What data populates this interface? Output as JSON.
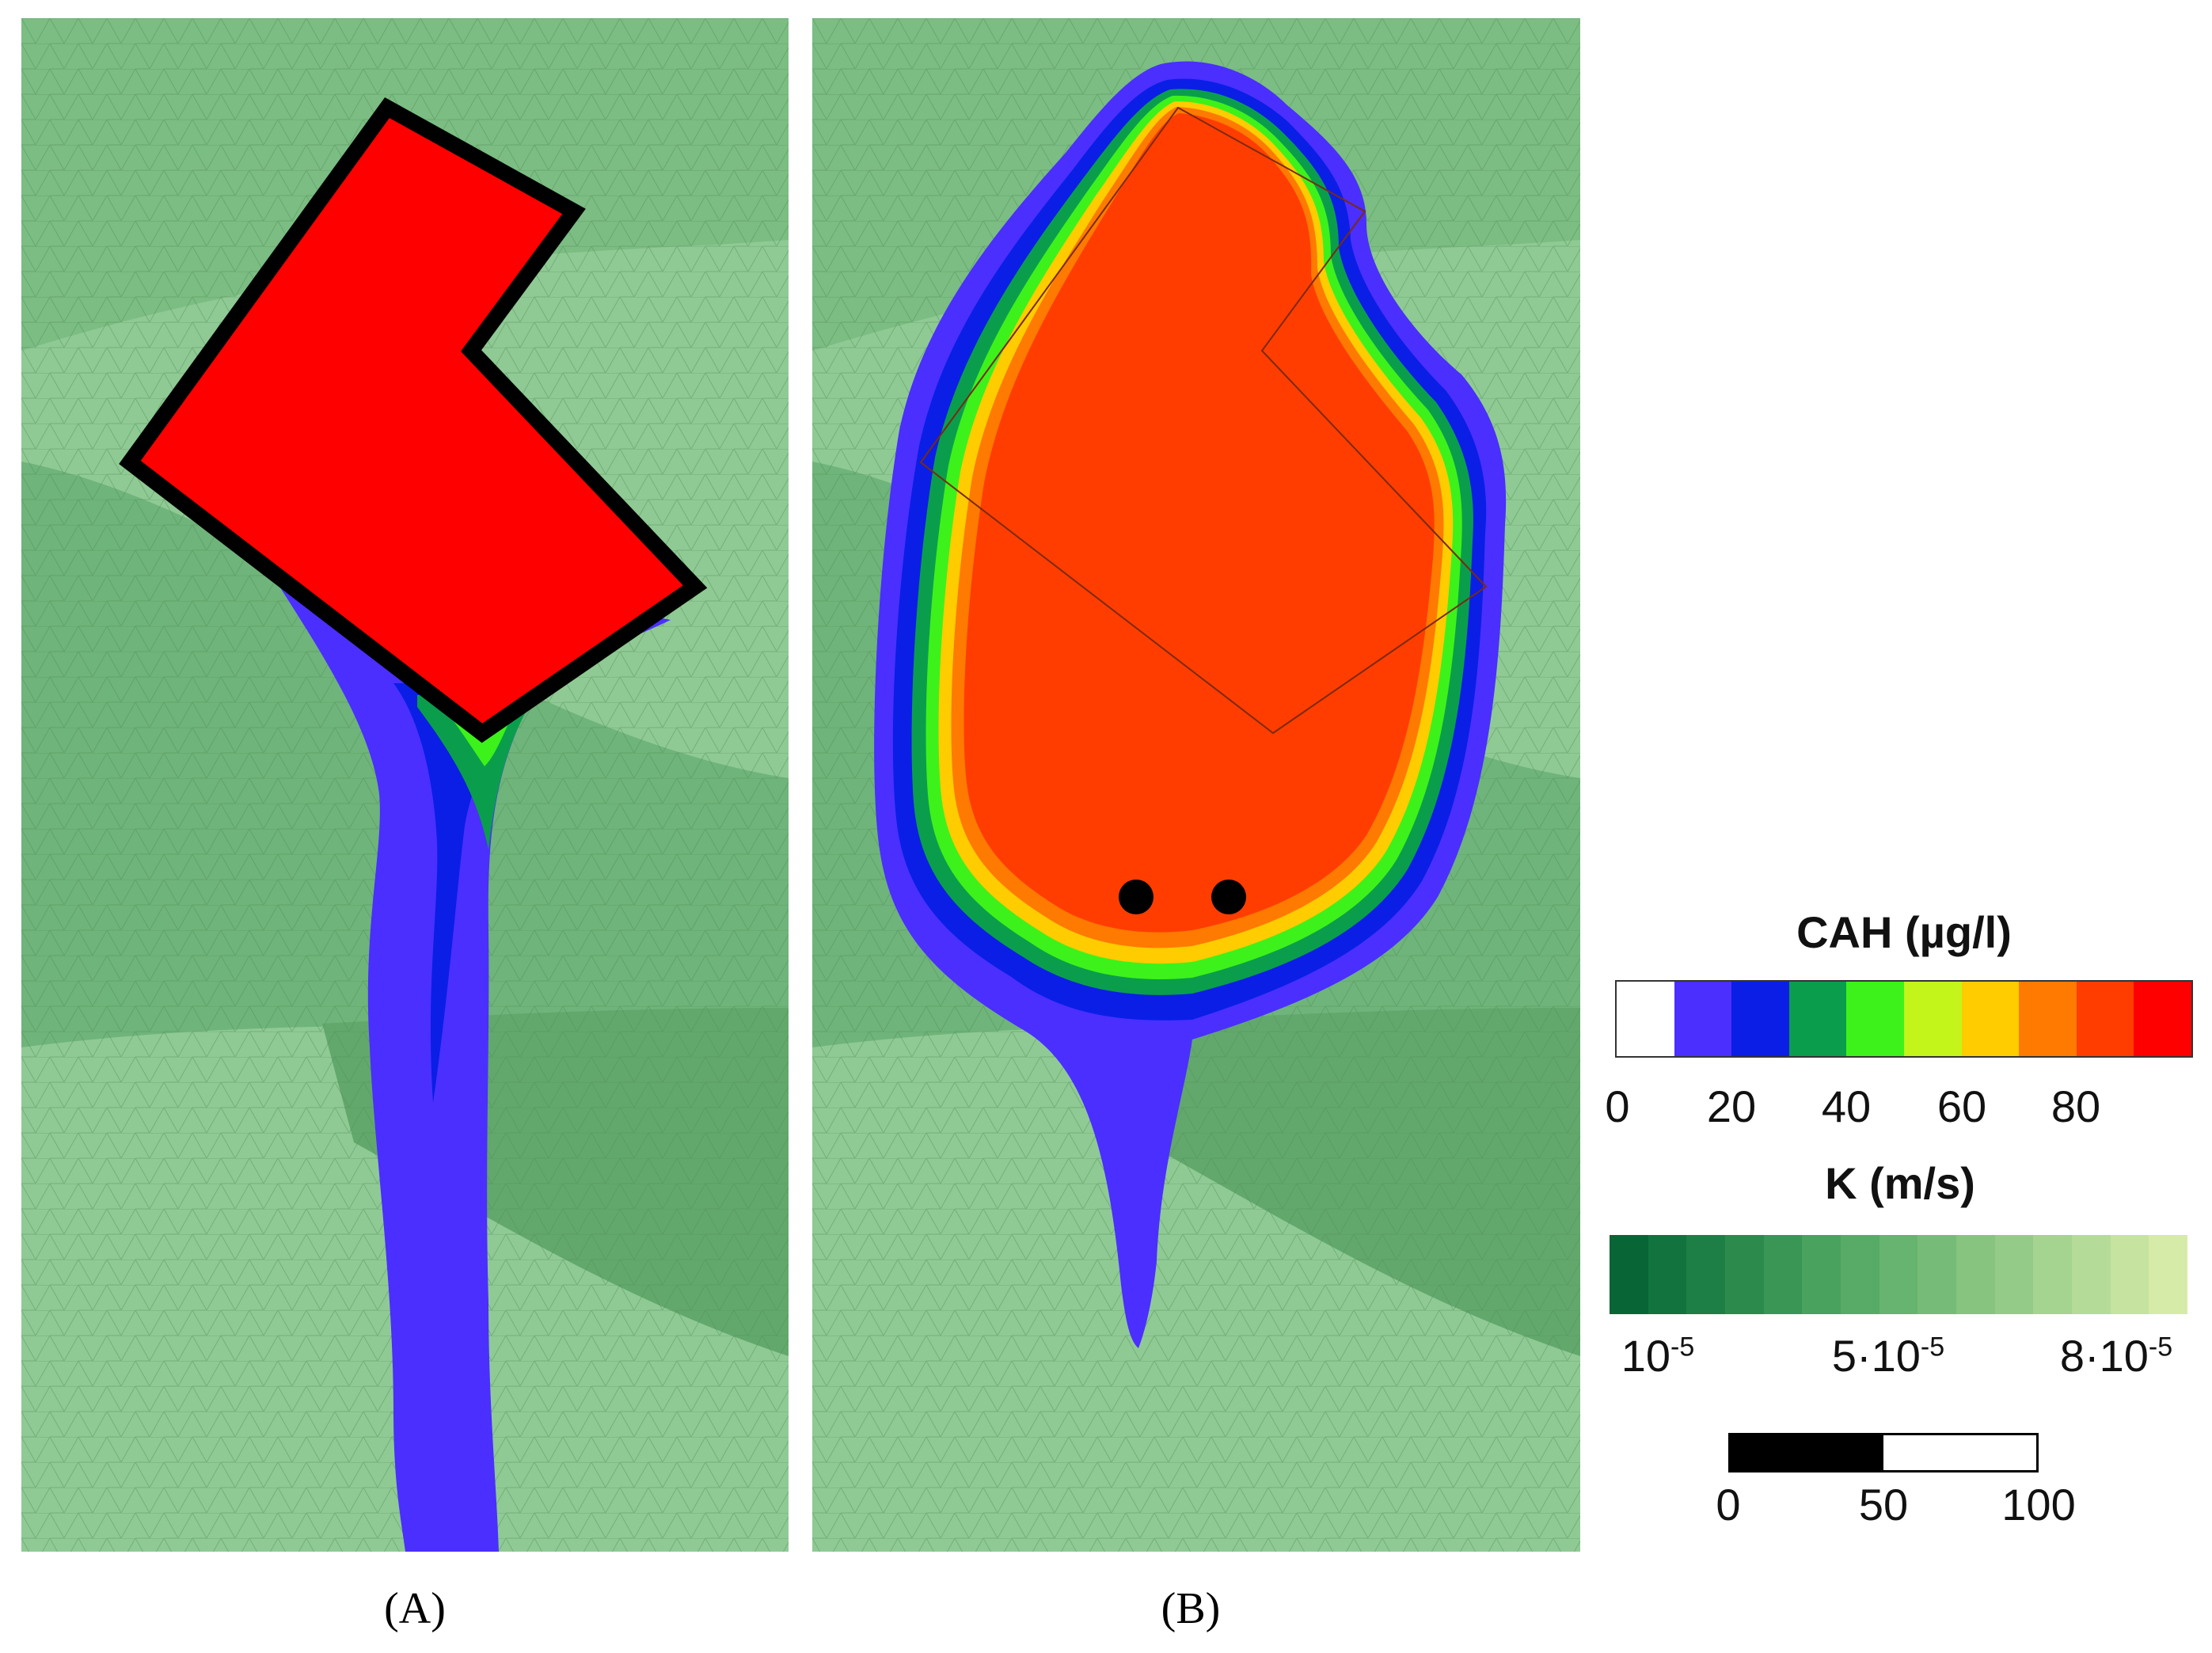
{
  "panels": [
    {
      "label": "(A)"
    },
    {
      "label": "(B)"
    }
  ],
  "colors": {
    "mesh_light": "#8fca94",
    "mesh_mid": "#7bbd83",
    "mesh_dark": "#62a86d",
    "plume_red": "#ff0000",
    "plume_orange_red": "#ff4400",
    "wells": "#000000",
    "outline": "#000000"
  },
  "cah_legend": {
    "title": "CAH (µg/l)",
    "colors": [
      "#ffffff",
      "#4a2fff",
      "#0a1ee6",
      "#0a9e4c",
      "#3df21a",
      "#c3f51a",
      "#ffcc00",
      "#ff7a00",
      "#ff3d00",
      "#ff0000"
    ],
    "ticks": [
      "0",
      "20",
      "40",
      "60",
      "80"
    ]
  },
  "k_legend": {
    "title": "K (m/s)",
    "colors": [
      "#086535",
      "#12733f",
      "#1d7f45",
      "#2b8a4c",
      "#3a9655",
      "#49a25e",
      "#57ab66",
      "#66b46f",
      "#76bc78",
      "#86c480",
      "#95cb88",
      "#a5d390",
      "#b5db98",
      "#c6e3a0",
      "#d6eba8"
    ],
    "ticks": [
      {
        "base": "10",
        "exp": "-5"
      },
      {
        "base": "5·10",
        "exp": "-5"
      },
      {
        "base": "8·10",
        "exp": "-5"
      }
    ]
  },
  "scale_bar": {
    "ticks": [
      "0",
      "50",
      "100"
    ]
  },
  "panel_b_wells": 2
}
